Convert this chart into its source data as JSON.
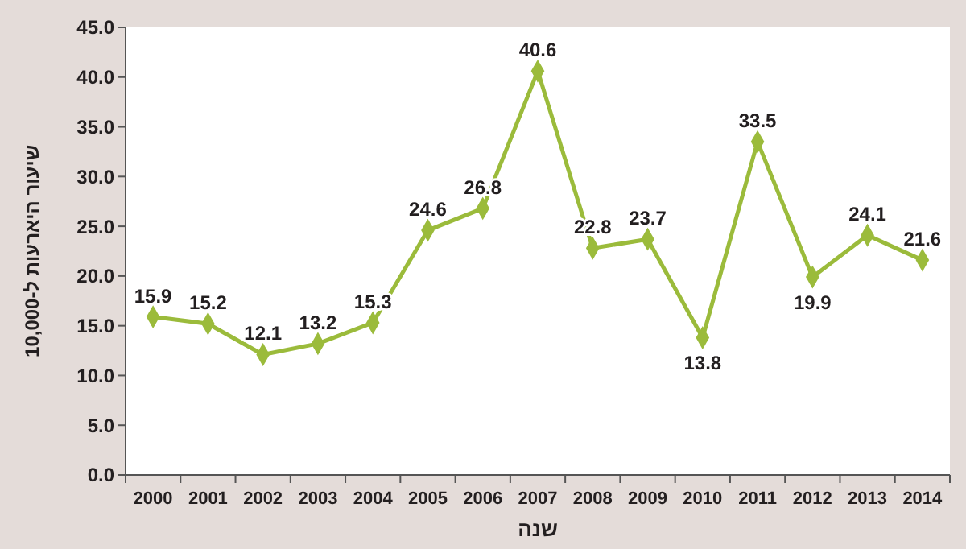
{
  "chart_data": {
    "type": "line",
    "ylabel": "שיעור היארעות ל-10,000",
    "xlabel": "שנה",
    "categories": [
      "2000",
      "2001",
      "2002",
      "2003",
      "2004",
      "2005",
      "2006",
      "2007",
      "2008",
      "2009",
      "2010",
      "2011",
      "2012",
      "2013",
      "2014"
    ],
    "series": [
      {
        "color": "#9bbb3b",
        "values": [
          15.9,
          15.2,
          12.1,
          13.2,
          15.3,
          24.6,
          26.8,
          40.6,
          22.8,
          23.7,
          13.8,
          33.5,
          19.9,
          24.1,
          21.6
        ]
      }
    ],
    "ylim": [
      0,
      45
    ],
    "yticks": [
      {
        "value": 0,
        "label": "0.0"
      },
      {
        "value": 5,
        "label": "5.0"
      },
      {
        "value": 10,
        "label": "10.0"
      },
      {
        "value": 15,
        "label": "15.0"
      },
      {
        "value": 20,
        "label": "20.0"
      },
      {
        "value": 25,
        "label": "25.0"
      },
      {
        "value": 30,
        "label": "30.0"
      },
      {
        "value": 35,
        "label": "35.0"
      },
      {
        "value": 40,
        "label": "40.0"
      },
      {
        "value": 45,
        "label": "45.0"
      }
    ],
    "data_labels": true,
    "marker": "diamond",
    "grid": false
  }
}
